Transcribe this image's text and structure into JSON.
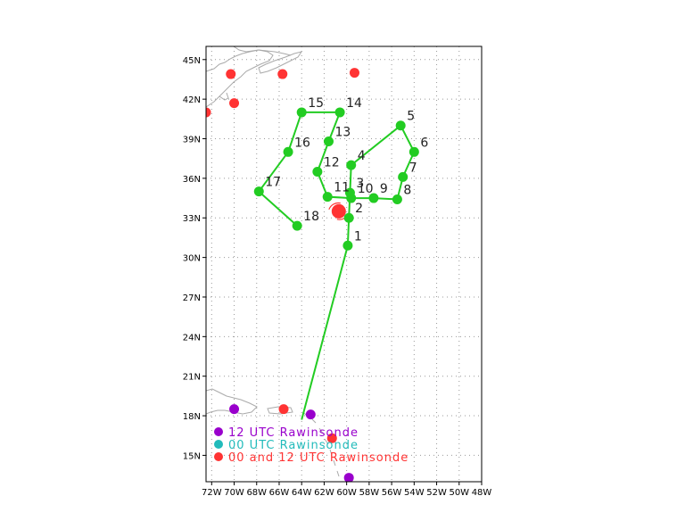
{
  "map": {
    "lon_range": [
      -72.5,
      -48
    ],
    "lat_range": [
      13,
      46
    ],
    "x_ticks": [
      {
        "lon": -72,
        "label": "72W"
      },
      {
        "lon": -70,
        "label": "70W"
      },
      {
        "lon": -68,
        "label": "68W"
      },
      {
        "lon": -66,
        "label": "66W"
      },
      {
        "lon": -64,
        "label": "64W"
      },
      {
        "lon": -62,
        "label": "62W"
      },
      {
        "lon": -60,
        "label": "60W"
      },
      {
        "lon": -58,
        "label": "58W"
      },
      {
        "lon": -56,
        "label": "56W"
      },
      {
        "lon": -54,
        "label": "54W"
      },
      {
        "lon": -52,
        "label": "52W"
      },
      {
        "lon": -50,
        "label": "50W"
      },
      {
        "lon": -48,
        "label": "48W"
      }
    ],
    "y_ticks": [
      {
        "lat": 45,
        "label": "45N"
      },
      {
        "lat": 42,
        "label": "42N"
      },
      {
        "lat": 39,
        "label": "39N"
      },
      {
        "lat": 36,
        "label": "36N"
      },
      {
        "lat": 33,
        "label": "33N"
      },
      {
        "lat": 30,
        "label": "30N"
      },
      {
        "lat": 27,
        "label": "27N"
      },
      {
        "lat": 24,
        "label": "24N"
      },
      {
        "lat": 21,
        "label": "21N"
      },
      {
        "lat": 18,
        "label": "18N"
      },
      {
        "lat": 15,
        "label": "15N"
      }
    ],
    "grid": true,
    "track_color": "#22cc22",
    "track": [
      {
        "lon": -64.0,
        "lat": 17.7,
        "label": ""
      },
      {
        "lon": -59.9,
        "lat": 30.9,
        "label": "1"
      },
      {
        "lon": -59.8,
        "lat": 33.0,
        "label": "2"
      },
      {
        "lon": -59.7,
        "lat": 34.9,
        "label": "3"
      },
      {
        "lon": -59.6,
        "lat": 37.0,
        "label": "4"
      },
      {
        "lon": -55.2,
        "lat": 40.0,
        "label": "5"
      },
      {
        "lon": -54.0,
        "lat": 38.0,
        "label": "6"
      },
      {
        "lon": -55.0,
        "lat": 36.1,
        "label": "7"
      },
      {
        "lon": -55.5,
        "lat": 34.4,
        "label": "8"
      },
      {
        "lon": -57.6,
        "lat": 34.5,
        "label": "9"
      },
      {
        "lon": -59.6,
        "lat": 34.5,
        "label": "10"
      },
      {
        "lon": -61.7,
        "lat": 34.6,
        "label": "11"
      },
      {
        "lon": -62.6,
        "lat": 36.5,
        "label": "12"
      },
      {
        "lon": -61.6,
        "lat": 38.8,
        "label": "13"
      },
      {
        "lon": -60.6,
        "lat": 41.0,
        "label": "14"
      },
      {
        "lon": -64.0,
        "lat": 41.0,
        "label": "15"
      },
      {
        "lon": -65.2,
        "lat": 38.0,
        "label": "16"
      },
      {
        "lon": -67.8,
        "lat": 35.0,
        "label": "17"
      },
      {
        "lon": -64.4,
        "lat": 32.4,
        "label": "18"
      }
    ],
    "current_position": {
      "lon": -60.7,
      "lat": 33.5
    },
    "raobs_12utc_color": "#9900cc",
    "raobs_12utc": [
      {
        "lon": -70.0,
        "lat": 18.5
      },
      {
        "lon": -63.2,
        "lat": 18.1
      },
      {
        "lon": -59.8,
        "lat": 13.3
      }
    ],
    "raobs_both_color": "#ff3333",
    "raobs_both": [
      {
        "lon": -72.5,
        "lat": 41.0
      },
      {
        "lon": -70.3,
        "lat": 43.9
      },
      {
        "lon": -70.0,
        "lat": 41.7
      },
      {
        "lon": -65.7,
        "lat": 43.9
      },
      {
        "lon": -59.3,
        "lat": 44.0
      },
      {
        "lon": -65.6,
        "lat": 18.5
      },
      {
        "lon": -61.3,
        "lat": 16.3
      }
    ],
    "raobs_00utc_color": "#22bbbb"
  },
  "legend": [
    {
      "text": "12 UTC Rawinsonde",
      "color": "#9900cc"
    },
    {
      "text": "00 UTC Rawinsonde",
      "color": "#22bbbb"
    },
    {
      "text": "00 and 12 UTC Rawinsonde",
      "color": "#ff3333"
    }
  ]
}
